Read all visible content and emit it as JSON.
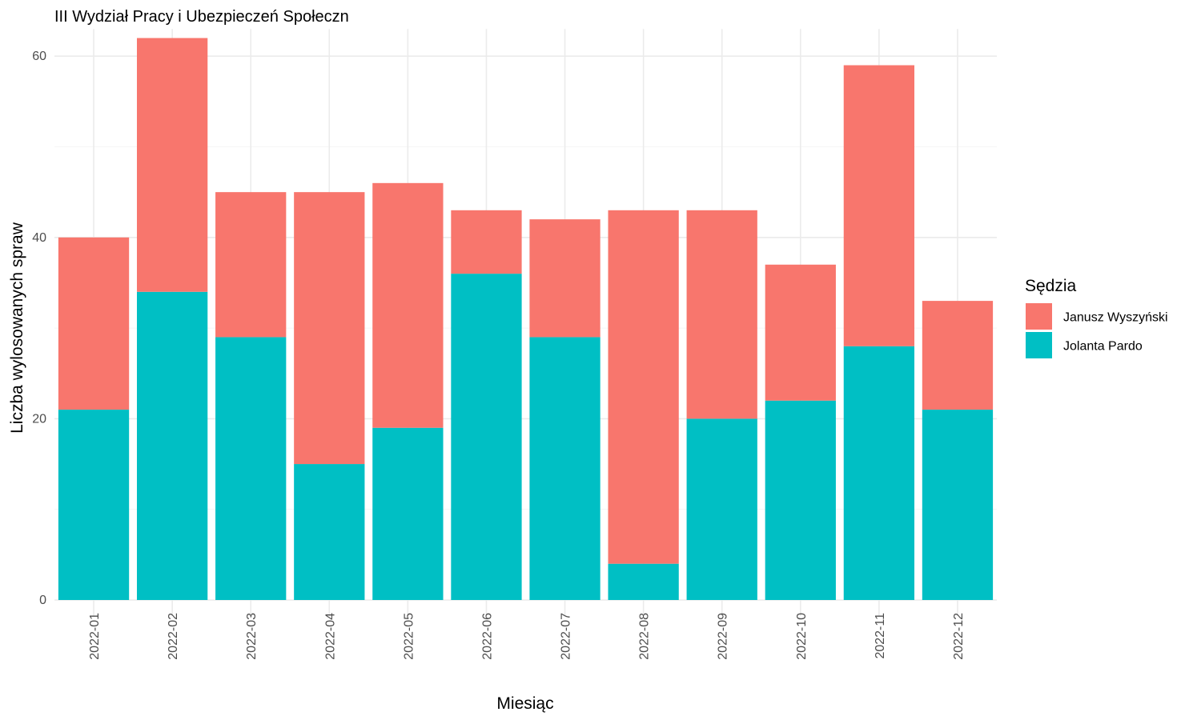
{
  "chart_data": {
    "type": "bar",
    "stacked": true,
    "title": "III Wydział Pracy i Ubezpieczeń Społeczn",
    "xlabel": "Miesiąc",
    "ylabel": "Liczba wylosowanych spraw",
    "categories": [
      "2022-01",
      "2022-02",
      "2022-03",
      "2022-04",
      "2022-05",
      "2022-06",
      "2022-07",
      "2022-08",
      "2022-09",
      "2022-10",
      "2022-11",
      "2022-12"
    ],
    "series": [
      {
        "name": "Jolanta Pardo",
        "color": "#00BFC4",
        "values": [
          21,
          34,
          29,
          15,
          19,
          36,
          29,
          4,
          20,
          22,
          28,
          21
        ]
      },
      {
        "name": "Janusz Wyszyński",
        "color": "#F8766D",
        "values": [
          19,
          28,
          16,
          30,
          27,
          7,
          13,
          39,
          23,
          15,
          31,
          12
        ]
      }
    ],
    "ylim": [
      0,
      63
    ],
    "yticks": [
      0,
      20,
      40,
      60
    ],
    "grid": true,
    "legend": {
      "title": "Sędzia",
      "position": "right",
      "entries": [
        {
          "label": "Janusz Wyszyński",
          "color": "#F8766D"
        },
        {
          "label": "Jolanta Pardo",
          "color": "#00BFC4"
        }
      ]
    }
  }
}
